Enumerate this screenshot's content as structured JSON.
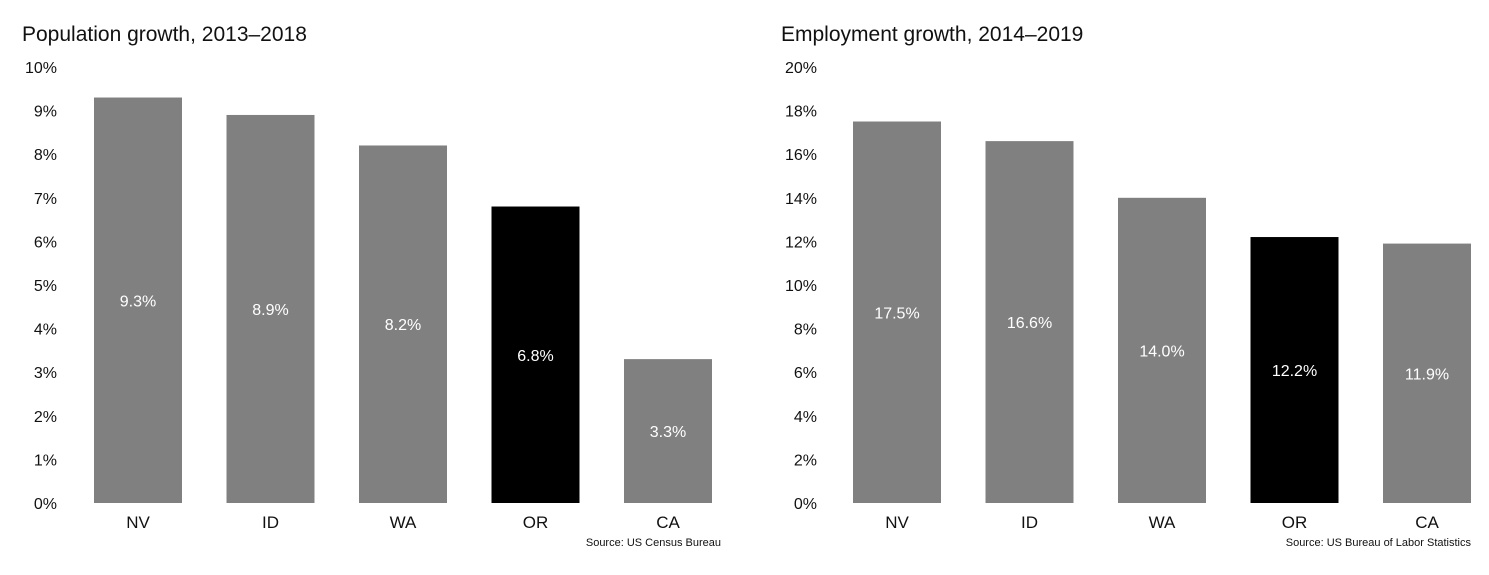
{
  "chart_data": [
    {
      "type": "bar",
      "title": "Population growth, 2013–2018",
      "categories": [
        "NV",
        "ID",
        "WA",
        "OR",
        "CA"
      ],
      "values": [
        9.3,
        8.9,
        8.2,
        6.8,
        3.3
      ],
      "value_labels": [
        "9.3%",
        "8.9%",
        "8.2%",
        "6.8%",
        "3.3%"
      ],
      "highlight": "OR",
      "ylim": [
        0,
        10
      ],
      "yticks": [
        0,
        1,
        2,
        3,
        4,
        5,
        6,
        7,
        8,
        9,
        10
      ],
      "ytick_labels": [
        "0%",
        "1%",
        "2%",
        "3%",
        "4%",
        "5%",
        "6%",
        "7%",
        "8%",
        "9%",
        "10%"
      ],
      "source": "Source: US Census Bureau",
      "grid": false,
      "colors": {
        "bar": "#808080",
        "highlight": "#000000",
        "label": "#ffffff"
      }
    },
    {
      "type": "bar",
      "title": "Employment growth, 2014–2019",
      "categories": [
        "NV",
        "ID",
        "WA",
        "OR",
        "CA"
      ],
      "values": [
        17.5,
        16.6,
        14.0,
        12.2,
        11.9
      ],
      "value_labels": [
        "17.5%",
        "16.6%",
        "14.0%",
        "12.2%",
        "11.9%"
      ],
      "highlight": "OR",
      "ylim": [
        0,
        20
      ],
      "yticks": [
        0,
        2,
        4,
        6,
        8,
        10,
        12,
        14,
        16,
        18,
        20
      ],
      "ytick_labels": [
        "0%",
        "2%",
        "4%",
        "6%",
        "8%",
        "10%",
        "12%",
        "14%",
        "16%",
        "18%",
        "20%"
      ],
      "source": "Source: US Bureau of Labor Statistics",
      "grid": false,
      "colors": {
        "bar": "#808080",
        "highlight": "#000000",
        "label": "#ffffff"
      }
    }
  ]
}
